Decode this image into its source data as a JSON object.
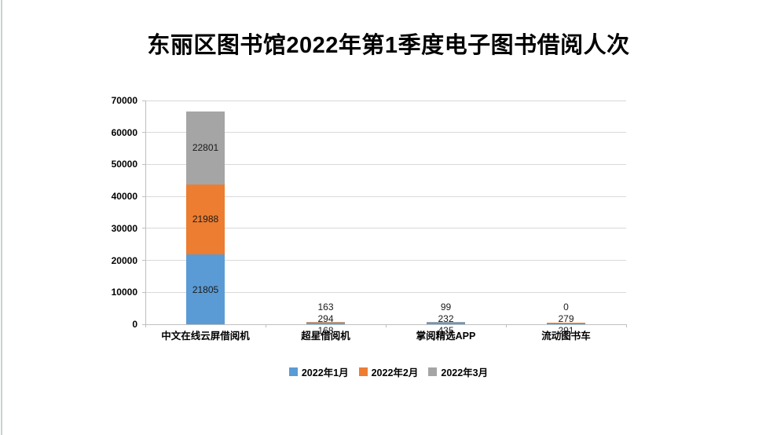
{
  "chart_data": {
    "type": "bar",
    "stacked": true,
    "title": "东丽区图书馆2022年第1季度电子图书借阅人次",
    "categories": [
      "中文在线云屏借阅机",
      "超星借阅机",
      "掌阅精选APP",
      "流动图书车"
    ],
    "series": [
      {
        "name": "2022年1月",
        "color": "#5B9BD5",
        "values": [
          21805,
          168,
          435,
          291
        ]
      },
      {
        "name": "2022年2月",
        "color": "#ED7D31",
        "values": [
          21988,
          294,
          232,
          279
        ]
      },
      {
        "name": "2022年3月",
        "color": "#A5A5A5",
        "values": [
          22801,
          163,
          99,
          0
        ]
      }
    ],
    "data_labels_shown": [
      "21805",
      "21988",
      "22801",
      "294",
      "163",
      "232",
      "99",
      "279",
      "0"
    ],
    "ylim": [
      0,
      70000
    ],
    "ytick_step": 10000,
    "ytick_labels": [
      "0",
      "10000",
      "20000",
      "30000",
      "40000",
      "50000",
      "60000",
      "70000"
    ],
    "grid": true,
    "legend_position": "bottom",
    "colors": {
      "gridline": "#d9d9d9",
      "axis": "#bfbfbf",
      "title_text": "#000000",
      "label_text": "#1a1a1a"
    }
  }
}
